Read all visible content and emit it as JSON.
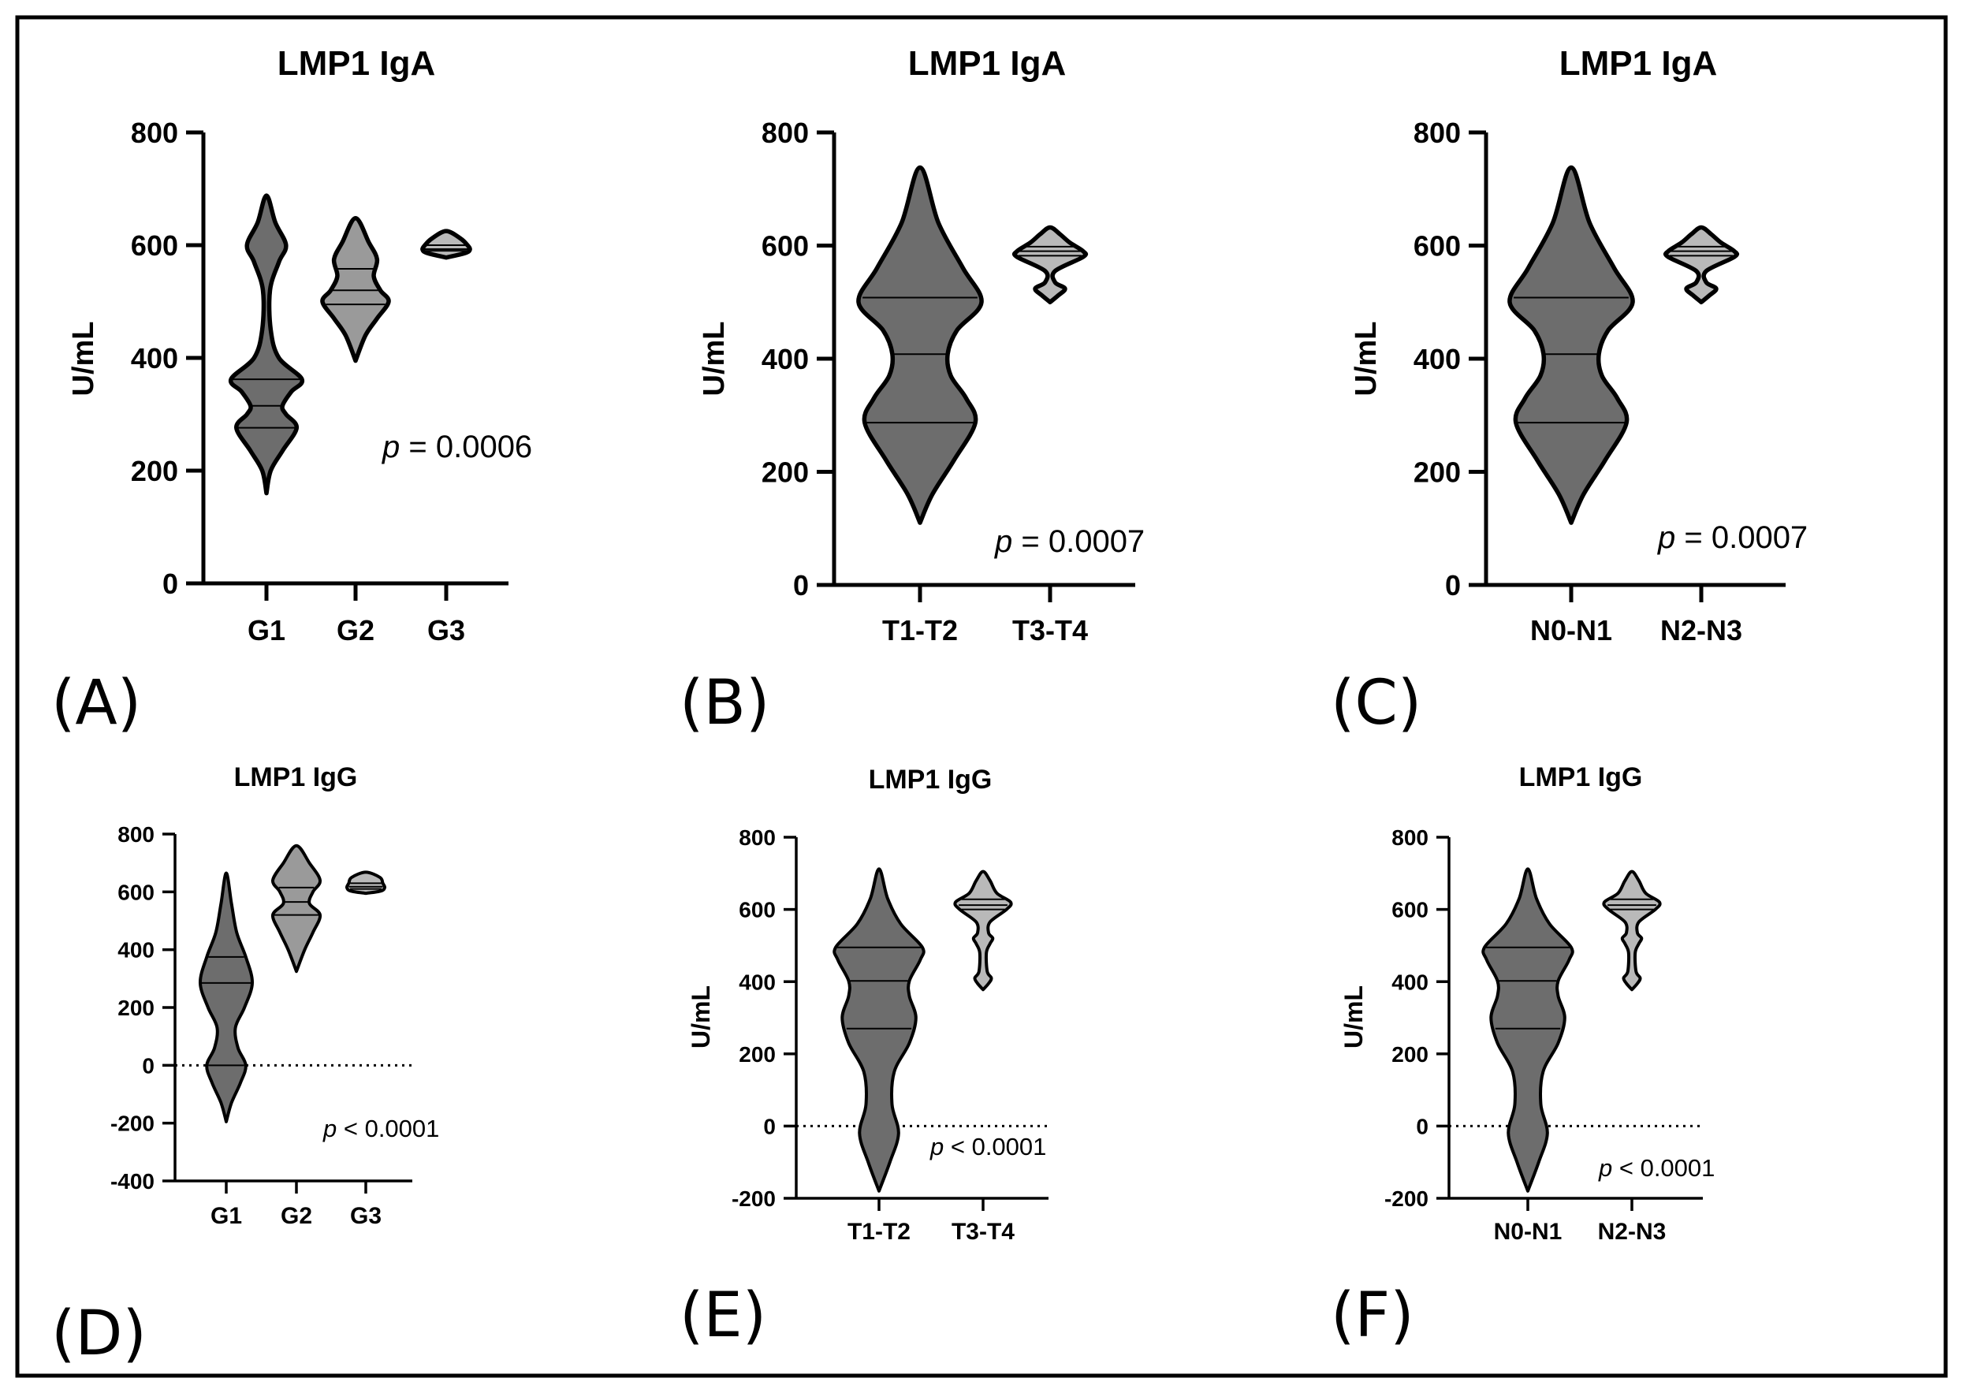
{
  "colors": {
    "dark_violin": "#6d6d6d",
    "mid_violin": "#9a9a9a",
    "light_violin": "#b9b9b9",
    "axis": "#000000",
    "background": "#ffffff"
  },
  "chart_data": [
    {
      "type": "violin",
      "panel": "(A)",
      "title": "LMP1 IgA",
      "ylabel": "U/mL",
      "xlabel": "",
      "ylim": [
        0,
        800
      ],
      "yticks": [
        0,
        200,
        400,
        600,
        800
      ],
      "categories": [
        "G1",
        "G2",
        "G3"
      ],
      "groups": [
        {
          "name": "G1",
          "min": 160,
          "max": 688,
          "q1": 276,
          "median": 315,
          "q3": 362,
          "density": [
            [
              160,
              0
            ],
            [
              200,
              0.12
            ],
            [
              235,
              0.45
            ],
            [
              276,
              0.85
            ],
            [
              300,
              0.55
            ],
            [
              315,
              0.45
            ],
            [
              340,
              0.7
            ],
            [
              362,
              1
            ],
            [
              400,
              0.35
            ],
            [
              450,
              0.12
            ],
            [
              520,
              0.1
            ],
            [
              570,
              0.35
            ],
            [
              600,
              0.55
            ],
            [
              640,
              0.25
            ],
            [
              688,
              0
            ]
          ]
        },
        {
          "name": "G2",
          "min": 395,
          "max": 648,
          "q1": 495,
          "median": 520,
          "q3": 558,
          "density": [
            [
              395,
              0
            ],
            [
              440,
              0.3
            ],
            [
              470,
              0.65
            ],
            [
              500,
              1
            ],
            [
              520,
              0.75
            ],
            [
              545,
              0.55
            ],
            [
              575,
              0.65
            ],
            [
              605,
              0.4
            ],
            [
              648,
              0
            ]
          ]
        },
        {
          "name": "G3",
          "min": 578,
          "max": 625,
          "q1": 590,
          "median": 593,
          "q3": 600,
          "density": [
            [
              578,
              0
            ],
            [
              586,
              0.8
            ],
            [
              592,
              1
            ],
            [
              600,
              0.9
            ],
            [
              612,
              0.6
            ],
            [
              625,
              0
            ]
          ]
        }
      ],
      "annotation": {
        "p_symbol": "p",
        "text": " = 0.0006"
      }
    },
    {
      "type": "violin",
      "panel": "(B)",
      "title": "LMP1 IgA",
      "ylabel": "U/mL",
      "xlabel": "",
      "ylim": [
        0,
        800
      ],
      "yticks": [
        0,
        200,
        400,
        600,
        800
      ],
      "categories": [
        "T1-T2",
        "T3-T4"
      ],
      "groups": [
        {
          "name": "T1-T2",
          "min": 110,
          "max": 738,
          "q1": 287,
          "median": 408,
          "q3": 508,
          "density": [
            [
              110,
              0
            ],
            [
              160,
              0.2
            ],
            [
              220,
              0.55
            ],
            [
              287,
              0.9
            ],
            [
              330,
              0.75
            ],
            [
              370,
              0.5
            ],
            [
              408,
              0.45
            ],
            [
              450,
              0.6
            ],
            [
              500,
              1
            ],
            [
              560,
              0.7
            ],
            [
              640,
              0.3
            ],
            [
              738,
              0
            ]
          ]
        },
        {
          "name": "T3-T4",
          "min": 500,
          "max": 632,
          "q1": 582,
          "median": 590,
          "q3": 598,
          "density": [
            [
              500,
              0
            ],
            [
              512,
              0.25
            ],
            [
              524,
              0.45
            ],
            [
              535,
              0.15
            ],
            [
              555,
              0.15
            ],
            [
              580,
              1
            ],
            [
              590,
              1
            ],
            [
              605,
              0.6
            ],
            [
              620,
              0.3
            ],
            [
              632,
              0
            ]
          ]
        }
      ],
      "annotation": {
        "p_symbol": "p",
        "text": " = 0.0007"
      }
    },
    {
      "type": "violin",
      "panel": "(C)",
      "title": "LMP1 IgA",
      "ylabel": "U/mL",
      "xlabel": "",
      "ylim": [
        0,
        800
      ],
      "yticks": [
        0,
        200,
        400,
        600,
        800
      ],
      "categories": [
        "N0-N1",
        "N2-N3"
      ],
      "groups": [
        {
          "name": "N0-N1",
          "min": 110,
          "max": 738,
          "q1": 287,
          "median": 408,
          "q3": 508,
          "density": [
            [
              110,
              0
            ],
            [
              160,
              0.2
            ],
            [
              220,
              0.55
            ],
            [
              287,
              0.9
            ],
            [
              330,
              0.75
            ],
            [
              370,
              0.5
            ],
            [
              408,
              0.45
            ],
            [
              450,
              0.6
            ],
            [
              500,
              1
            ],
            [
              560,
              0.7
            ],
            [
              640,
              0.3
            ],
            [
              738,
              0
            ]
          ]
        },
        {
          "name": "N2-N3",
          "min": 500,
          "max": 632,
          "q1": 582,
          "median": 590,
          "q3": 598,
          "density": [
            [
              500,
              0
            ],
            [
              512,
              0.25
            ],
            [
              524,
              0.45
            ],
            [
              535,
              0.15
            ],
            [
              555,
              0.15
            ],
            [
              580,
              1
            ],
            [
              590,
              1
            ],
            [
              605,
              0.6
            ],
            [
              620,
              0.3
            ],
            [
              632,
              0
            ]
          ]
        }
      ],
      "annotation": {
        "p_symbol": "p",
        "text": " = 0.0007"
      }
    },
    {
      "type": "violin",
      "panel": "(D)",
      "title": "LMP1 IgG",
      "ylabel": "",
      "xlabel": "",
      "ylim": [
        -400,
        800
      ],
      "yticks": [
        -400,
        -200,
        0,
        200,
        400,
        600,
        800
      ],
      "zero_line": true,
      "categories": [
        "G1",
        "G2",
        "G3"
      ],
      "groups": [
        {
          "name": "G1",
          "min": -195,
          "max": 665,
          "q1": 0,
          "median": 285,
          "q3": 375,
          "density": [
            [
              -195,
              0
            ],
            [
              -130,
              0.2
            ],
            [
              -60,
              0.55
            ],
            [
              0,
              0.75
            ],
            [
              60,
              0.45
            ],
            [
              130,
              0.35
            ],
            [
              200,
              0.7
            ],
            [
              285,
              1
            ],
            [
              375,
              0.75
            ],
            [
              460,
              0.4
            ],
            [
              560,
              0.2
            ],
            [
              665,
              0
            ]
          ]
        },
        {
          "name": "G2",
          "min": 325,
          "max": 760,
          "q1": 520,
          "median": 565,
          "q3": 615,
          "density": [
            [
              325,
              0
            ],
            [
              400,
              0.35
            ],
            [
              460,
              0.7
            ],
            [
              520,
              1
            ],
            [
              560,
              0.55
            ],
            [
              600,
              0.7
            ],
            [
              640,
              1
            ],
            [
              700,
              0.55
            ],
            [
              760,
              0
            ]
          ]
        },
        {
          "name": "G3",
          "min": 595,
          "max": 668,
          "q1": 610,
          "median": 618,
          "q3": 630,
          "density": [
            [
              595,
              0
            ],
            [
              603,
              0.8
            ],
            [
              615,
              1
            ],
            [
              630,
              0.9
            ],
            [
              650,
              0.75
            ],
            [
              668,
              0
            ]
          ]
        }
      ],
      "annotation": {
        "p_symbol": "p",
        "text": " < 0.0001"
      }
    },
    {
      "type": "violin",
      "panel": "(E)",
      "title": "LMP1 IgG",
      "ylabel": "U/mL",
      "xlabel": "",
      "ylim": [
        -200,
        800
      ],
      "yticks": [
        -200,
        0,
        200,
        400,
        600,
        800
      ],
      "zero_line": true,
      "categories": [
        "T1-T2",
        "T3-T4"
      ],
      "groups": [
        {
          "name": "T1-T2",
          "min": -180,
          "max": 712,
          "q1": 270,
          "median": 402,
          "q3": 495,
          "density": [
            [
              -180,
              0
            ],
            [
              -100,
              0.25
            ],
            [
              -20,
              0.45
            ],
            [
              60,
              0.3
            ],
            [
              150,
              0.35
            ],
            [
              230,
              0.7
            ],
            [
              300,
              0.85
            ],
            [
              360,
              0.7
            ],
            [
              402,
              0.7
            ],
            [
              460,
              0.95
            ],
            [
              495,
              1
            ],
            [
              560,
              0.5
            ],
            [
              630,
              0.2
            ],
            [
              712,
              0
            ]
          ]
        },
        {
          "name": "T3-T4",
          "min": 378,
          "max": 705,
          "q1": 600,
          "median": 612,
          "q3": 628,
          "density": [
            [
              378,
              0
            ],
            [
              395,
              0.2
            ],
            [
              410,
              0.3
            ],
            [
              428,
              0.15
            ],
            [
              480,
              0.12
            ],
            [
              505,
              0.25
            ],
            [
              520,
              0.35
            ],
            [
              535,
              0.2
            ],
            [
              565,
              0.25
            ],
            [
              600,
              0.85
            ],
            [
              620,
              1
            ],
            [
              645,
              0.5
            ],
            [
              680,
              0.25
            ],
            [
              705,
              0
            ]
          ]
        }
      ],
      "annotation": {
        "p_symbol": "p",
        "text": " < 0.0001"
      }
    },
    {
      "type": "violin",
      "panel": "(F)",
      "title": "LMP1 IgG",
      "ylabel": "U/mL",
      "xlabel": "",
      "ylim": [
        -200,
        800
      ],
      "yticks": [
        -200,
        0,
        200,
        400,
        600,
        800
      ],
      "zero_line": true,
      "categories": [
        "N0-N1",
        "N2-N3"
      ],
      "groups": [
        {
          "name": "N0-N1",
          "min": -180,
          "max": 712,
          "q1": 270,
          "median": 402,
          "q3": 495,
          "density": [
            [
              -180,
              0
            ],
            [
              -100,
              0.25
            ],
            [
              -20,
              0.45
            ],
            [
              60,
              0.3
            ],
            [
              150,
              0.35
            ],
            [
              230,
              0.7
            ],
            [
              300,
              0.85
            ],
            [
              360,
              0.7
            ],
            [
              402,
              0.7
            ],
            [
              460,
              0.95
            ],
            [
              495,
              1
            ],
            [
              560,
              0.5
            ],
            [
              630,
              0.2
            ],
            [
              712,
              0
            ]
          ]
        },
        {
          "name": "N2-N3",
          "min": 378,
          "max": 705,
          "q1": 600,
          "median": 612,
          "q3": 628,
          "density": [
            [
              378,
              0
            ],
            [
              395,
              0.2
            ],
            [
              410,
              0.3
            ],
            [
              428,
              0.15
            ],
            [
              480,
              0.12
            ],
            [
              505,
              0.25
            ],
            [
              520,
              0.35
            ],
            [
              535,
              0.2
            ],
            [
              565,
              0.25
            ],
            [
              600,
              0.85
            ],
            [
              620,
              1
            ],
            [
              645,
              0.5
            ],
            [
              680,
              0.25
            ],
            [
              705,
              0
            ]
          ]
        }
      ],
      "annotation": {
        "p_symbol": "p",
        "text": " < 0.0001"
      }
    }
  ]
}
